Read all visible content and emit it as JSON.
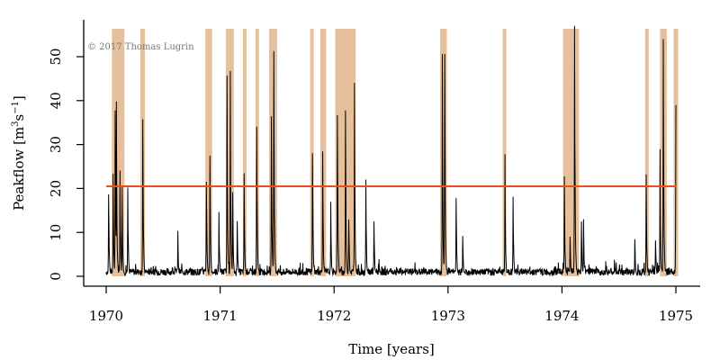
{
  "chart_data": {
    "type": "line",
    "xlabel": "Time [years]",
    "ylabel": "Peakflow [m",
    "ylabel_units": {
      "sup1": "3",
      "mid": "s",
      "sup2": "−1",
      "close": "]"
    },
    "credit": "© 2017 Thomas Lugrin",
    "x_ticks": [
      "1970",
      "1971",
      "1972",
      "1973",
      "1974",
      "1975"
    ],
    "y_ticks": [
      "0",
      "10",
      "20",
      "30",
      "40",
      "50"
    ],
    "xlim": [
      1970,
      1975
    ],
    "ylim": [
      0,
      55
    ],
    "threshold": {
      "value": 20.5,
      "color": "#e8501e"
    },
    "shade_color": "#e6c09c",
    "line_color": "#000000",
    "exceedance_periods": [
      [
        1970.05,
        1970.16
      ],
      [
        1970.3,
        1970.34
      ],
      [
        1970.87,
        1970.93
      ],
      [
        1971.05,
        1971.12
      ],
      [
        1971.2,
        1971.23
      ],
      [
        1971.31,
        1971.34
      ],
      [
        1971.43,
        1971.5
      ],
      [
        1971.79,
        1971.82
      ],
      [
        1971.88,
        1971.93
      ],
      [
        1972.01,
        1972.19
      ],
      [
        1972.93,
        1972.99
      ],
      [
        1973.48,
        1973.51
      ],
      [
        1974.01,
        1974.15
      ],
      [
        1974.73,
        1974.76
      ],
      [
        1974.86,
        1974.92
      ],
      [
        1974.98,
        1975.02
      ]
    ],
    "peaks": [
      {
        "x": 1970.02,
        "y": 19.5
      },
      {
        "x": 1970.06,
        "y": 23
      },
      {
        "x": 1970.08,
        "y": 33
      },
      {
        "x": 1970.09,
        "y": 37.5
      },
      {
        "x": 1970.12,
        "y": 22
      },
      {
        "x": 1970.14,
        "y": 21
      },
      {
        "x": 1970.19,
        "y": 20
      },
      {
        "x": 1970.32,
        "y": 38
      },
      {
        "x": 1970.63,
        "y": 9.5
      },
      {
        "x": 1970.88,
        "y": 24.5
      },
      {
        "x": 1970.91,
        "y": 29.5
      },
      {
        "x": 1970.99,
        "y": 15
      },
      {
        "x": 1971.06,
        "y": 44
      },
      {
        "x": 1971.09,
        "y": 41
      },
      {
        "x": 1971.11,
        "y": 19
      },
      {
        "x": 1971.15,
        "y": 13
      },
      {
        "x": 1971.21,
        "y": 22.5
      },
      {
        "x": 1971.32,
        "y": 35.5
      },
      {
        "x": 1971.45,
        "y": 35
      },
      {
        "x": 1971.47,
        "y": 50.5
      },
      {
        "x": 1971.81,
        "y": 31
      },
      {
        "x": 1971.9,
        "y": 27.5
      },
      {
        "x": 1971.97,
        "y": 15
      },
      {
        "x": 1972.03,
        "y": 40
      },
      {
        "x": 1972.1,
        "y": 37
      },
      {
        "x": 1972.13,
        "y": 15
      },
      {
        "x": 1972.18,
        "y": 41
      },
      {
        "x": 1972.28,
        "y": 20.5
      },
      {
        "x": 1972.35,
        "y": 14
      },
      {
        "x": 1972.95,
        "y": 44
      },
      {
        "x": 1972.97,
        "y": 52
      },
      {
        "x": 1973.07,
        "y": 18
      },
      {
        "x": 1973.13,
        "y": 10
      },
      {
        "x": 1973.5,
        "y": 25.5
      },
      {
        "x": 1973.57,
        "y": 19.5
      },
      {
        "x": 1974.02,
        "y": 21.5
      },
      {
        "x": 1974.07,
        "y": 10
      },
      {
        "x": 1974.11,
        "y": 57
      },
      {
        "x": 1974.17,
        "y": 12
      },
      {
        "x": 1974.19,
        "y": 12
      },
      {
        "x": 1974.46,
        "y": 4
      },
      {
        "x": 1974.64,
        "y": 9
      },
      {
        "x": 1974.74,
        "y": 21
      },
      {
        "x": 1974.82,
        "y": 9.5
      },
      {
        "x": 1974.86,
        "y": 25.5
      },
      {
        "x": 1974.89,
        "y": 51.5
      },
      {
        "x": 1975.0,
        "y": 42
      }
    ]
  }
}
